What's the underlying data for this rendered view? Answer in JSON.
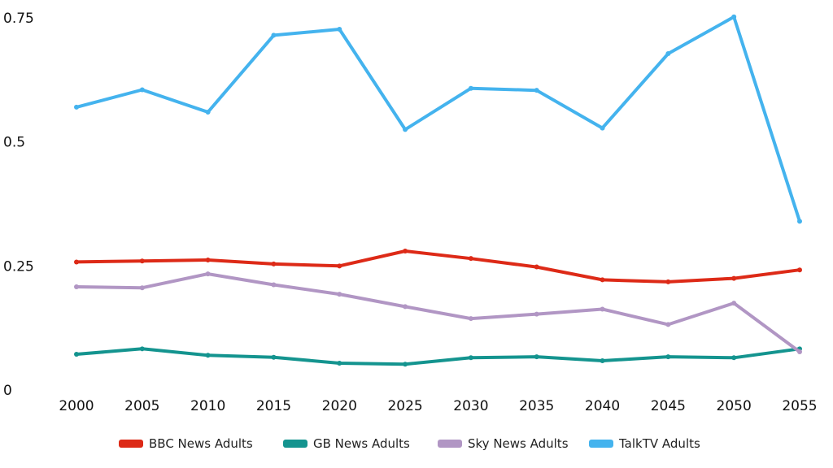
{
  "chart_data": {
    "type": "line",
    "title": "",
    "xlabel": "",
    "ylabel": "",
    "x": [
      2000,
      2005,
      2010,
      2015,
      2020,
      2025,
      2030,
      2035,
      2040,
      2045,
      2050,
      2055
    ],
    "ylim": [
      0,
      0.75
    ],
    "y_ticks": [
      0,
      0.25,
      0.5,
      0.75
    ],
    "y_tick_labels": [
      "0",
      "0.25",
      "0.5",
      "0.75"
    ],
    "grid": false,
    "legend_position": "bottom",
    "series": [
      {
        "name": "BBC News Adults",
        "color": "#dd2a17",
        "values": [
          0.258,
          0.26,
          0.262,
          0.254,
          0.25,
          0.28,
          0.265,
          0.248,
          0.222,
          0.218,
          0.225,
          0.242
        ]
      },
      {
        "name": "GB News Adults",
        "color": "#14948f",
        "values": [
          0.072,
          0.083,
          0.07,
          0.066,
          0.054,
          0.052,
          0.065,
          0.067,
          0.059,
          0.067,
          0.065,
          0.083
        ]
      },
      {
        "name": "Sky News Adults",
        "color": "#b196c4",
        "values": [
          0.208,
          0.206,
          0.234,
          0.212,
          0.193,
          0.168,
          0.144,
          0.153,
          0.163,
          0.132,
          0.175,
          0.077
        ]
      },
      {
        "name": "TalkTV Adults",
        "color": "#44b3ee",
        "values": [
          0.57,
          0.605,
          0.56,
          0.715,
          0.727,
          0.525,
          0.608,
          0.604,
          0.528,
          0.678,
          0.752,
          0.34
        ]
      }
    ]
  }
}
